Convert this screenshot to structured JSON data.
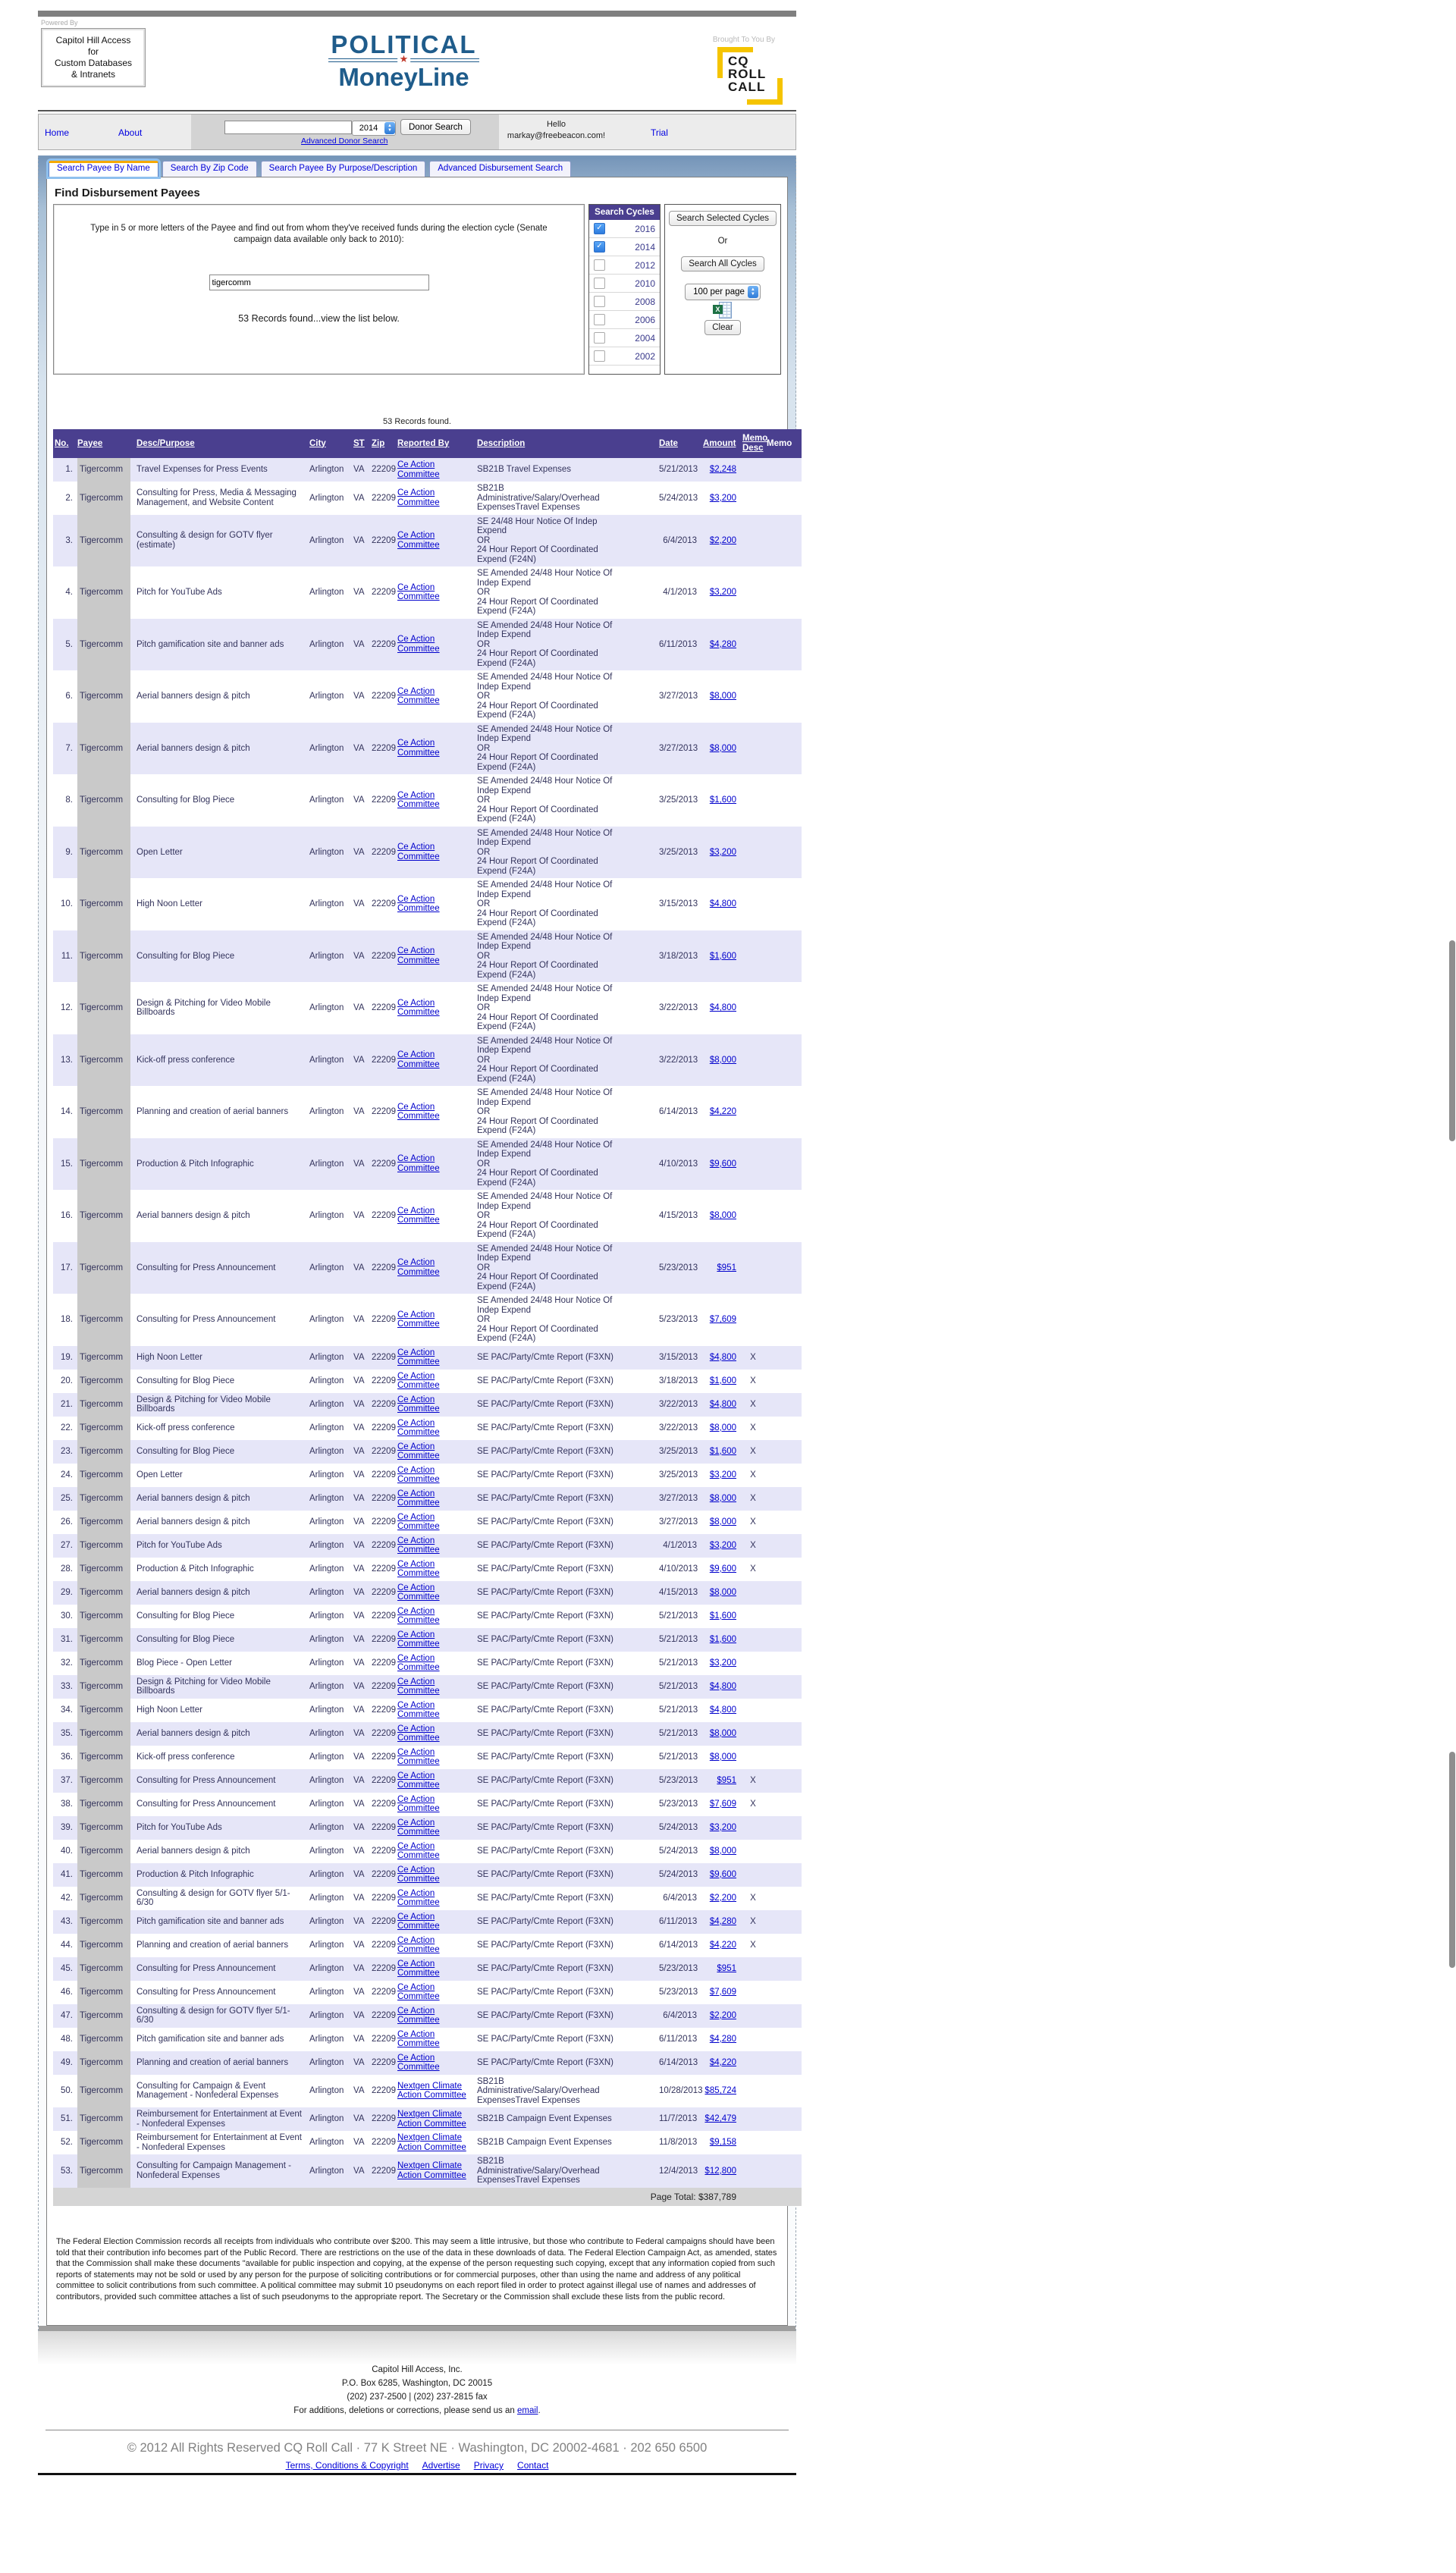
{
  "header": {
    "powered_by": "Powered By",
    "access_box": "Capitol Hill Access\nfor\nCustom Databases\n& Intranets",
    "logo_line1": "POLITICAL",
    "logo_star": "★",
    "logo_line2": "MoneyLine",
    "brought_by": "Brought To You By",
    "cq_logo": "CQ\nROLL\nCALL",
    "brand_blue": "#1F5C8B",
    "cq_yellow": "#F5C400"
  },
  "nav": {
    "home": "Home",
    "about": "About",
    "search_value": "",
    "year_selected": "2014",
    "donor_search": "Donor Search",
    "advanced_donor_search": "Advanced Donor Search",
    "hello": "Hello",
    "user": "markay@freebeacon.com!",
    "trial": "Trial"
  },
  "tabs": [
    {
      "label": "Search Payee By Name",
      "active": true
    },
    {
      "label": "Search By Zip Code",
      "active": false
    },
    {
      "label": "Search Payee By Purpose/Description",
      "active": false
    },
    {
      "label": "Advanced Disbursement Search",
      "active": false
    }
  ],
  "search": {
    "title": "Find Disbursement Payees",
    "instructions": "Type in 5 or more letters of the Payee and find out from whom they've received funds during the election cycle (Senate campaign data available only back to 2010):",
    "query": "tigercomm",
    "result_note": "53 Records found...view the list below."
  },
  "cycles": {
    "header": "Search Cycles",
    "items": [
      {
        "year": "2016",
        "checked": true
      },
      {
        "year": "2014",
        "checked": true
      },
      {
        "year": "2012",
        "checked": false
      },
      {
        "year": "2010",
        "checked": false
      },
      {
        "year": "2008",
        "checked": false
      },
      {
        "year": "2006",
        "checked": false
      },
      {
        "year": "2004",
        "checked": false
      },
      {
        "year": "2002",
        "checked": false
      }
    ]
  },
  "actions": {
    "search_selected": "Search Selected Cycles",
    "or": "Or",
    "search_all": "Search All Cycles",
    "per_page": "100 per page",
    "excel_icon": "excel-export-icon",
    "clear": "Clear"
  },
  "results": {
    "count_note": "53 Records found.",
    "columns": [
      "No.",
      "Payee",
      "Desc/Purpose",
      "City",
      "ST",
      "Zip",
      "Reported By",
      "Description",
      "Date",
      "Amount",
      "Memo Desc",
      "Memo"
    ],
    "header_purple": "#4A3F8F",
    "row_alt_color": "#E6E6F8",
    "payee_highlight_color": "#C9C9C9",
    "payee": "Tigercomm",
    "city": "Arlington",
    "st": "VA",
    "zip": "22209",
    "reported_by_options": {
      "ce": "Ce Action Committee",
      "ng": "Nextgen Climate Action Committee"
    },
    "descriptions": {
      "d1": "SB21B Travel Expenses",
      "d2": "SB21B\nAdministrative/Salary/Overhead\nExpensesTravel Expenses",
      "d3": "SE 24/48 Hour Notice Of Indep\nExpend\nOR\n24 Hour Report Of Coordinated\nExpend (F24N)",
      "d4": "SE Amended 24/48 Hour Notice Of\nIndep Expend\nOR\n24 Hour Report Of Coordinated\nExpend (F24A)",
      "d5": "SE PAC/Party/Cmte Report (F3XN)",
      "d6": "SB21B Campaign Event Expenses"
    },
    "rows": [
      {
        "no": "1.",
        "purpose": "Travel Expenses for Press Events",
        "reported_by": "ce",
        "desc": "d1",
        "date": "5/21/2013",
        "amount": "$2,248",
        "memo_desc": ""
      },
      {
        "no": "2.",
        "purpose": "Consulting for Press, Media & Messaging Management, and Website Content",
        "reported_by": "ce",
        "desc": "d2",
        "date": "5/24/2013",
        "amount": "$3,200",
        "memo_desc": ""
      },
      {
        "no": "3.",
        "purpose": "Consulting & design for GOTV flyer (estimate)",
        "reported_by": "ce",
        "desc": "d3",
        "date": "6/4/2013",
        "amount": "$2,200",
        "memo_desc": ""
      },
      {
        "no": "4.",
        "purpose": "Pitch for YouTube Ads",
        "reported_by": "ce",
        "desc": "d4",
        "date": "4/1/2013",
        "amount": "$3,200",
        "memo_desc": ""
      },
      {
        "no": "5.",
        "purpose": "Pitch gamification site and banner ads",
        "reported_by": "ce",
        "desc": "d4",
        "date": "6/11/2013",
        "amount": "$4,280",
        "memo_desc": ""
      },
      {
        "no": "6.",
        "purpose": "Aerial banners design & pitch",
        "reported_by": "ce",
        "desc": "d4",
        "date": "3/27/2013",
        "amount": "$8,000",
        "memo_desc": ""
      },
      {
        "no": "7.",
        "purpose": "Aerial banners design & pitch",
        "reported_by": "ce",
        "desc": "d4",
        "date": "3/27/2013",
        "amount": "$8,000",
        "memo_desc": ""
      },
      {
        "no": "8.",
        "purpose": "Consulting for Blog Piece",
        "reported_by": "ce",
        "desc": "d4",
        "date": "3/25/2013",
        "amount": "$1,600",
        "memo_desc": ""
      },
      {
        "no": "9.",
        "purpose": "Open Letter",
        "reported_by": "ce",
        "desc": "d4",
        "date": "3/25/2013",
        "amount": "$3,200",
        "memo_desc": ""
      },
      {
        "no": "10.",
        "purpose": "High Noon Letter",
        "reported_by": "ce",
        "desc": "d4",
        "date": "3/15/2013",
        "amount": "$4,800",
        "memo_desc": ""
      },
      {
        "no": "11.",
        "purpose": "Consulting for Blog Piece",
        "reported_by": "ce",
        "desc": "d4",
        "date": "3/18/2013",
        "amount": "$1,600",
        "memo_desc": ""
      },
      {
        "no": "12.",
        "purpose": "Design & Pitching for Video Mobile Billboards",
        "reported_by": "ce",
        "desc": "d4",
        "date": "3/22/2013",
        "amount": "$4,800",
        "memo_desc": ""
      },
      {
        "no": "13.",
        "purpose": "Kick-off press conference",
        "reported_by": "ce",
        "desc": "d4",
        "date": "3/22/2013",
        "amount": "$8,000",
        "memo_desc": ""
      },
      {
        "no": "14.",
        "purpose": "Planning and creation of aerial banners",
        "reported_by": "ce",
        "desc": "d4",
        "date": "6/14/2013",
        "amount": "$4,220",
        "memo_desc": ""
      },
      {
        "no": "15.",
        "purpose": "Production & Pitch Infographic",
        "reported_by": "ce",
        "desc": "d4",
        "date": "4/10/2013",
        "amount": "$9,600",
        "memo_desc": ""
      },
      {
        "no": "16.",
        "purpose": "Aerial banners design & pitch",
        "reported_by": "ce",
        "desc": "d4",
        "date": "4/15/2013",
        "amount": "$8,000",
        "memo_desc": ""
      },
      {
        "no": "17.",
        "purpose": "Consulting for Press Announcement",
        "reported_by": "ce",
        "desc": "d4",
        "date": "5/23/2013",
        "amount": "$951",
        "memo_desc": ""
      },
      {
        "no": "18.",
        "purpose": "Consulting for Press Announcement",
        "reported_by": "ce",
        "desc": "d4",
        "date": "5/23/2013",
        "amount": "$7,609",
        "memo_desc": ""
      },
      {
        "no": "19.",
        "purpose": "High Noon Letter",
        "reported_by": "ce",
        "desc": "d5",
        "date": "3/15/2013",
        "amount": "$4,800",
        "memo_desc": "X"
      },
      {
        "no": "20.",
        "purpose": "Consulting for Blog Piece",
        "reported_by": "ce",
        "desc": "d5",
        "date": "3/18/2013",
        "amount": "$1,600",
        "memo_desc": "X"
      },
      {
        "no": "21.",
        "purpose": "Design & Pitching for Video Mobile Billboards",
        "reported_by": "ce",
        "desc": "d5",
        "date": "3/22/2013",
        "amount": "$4,800",
        "memo_desc": "X"
      },
      {
        "no": "22.",
        "purpose": "Kick-off press conference",
        "reported_by": "ce",
        "desc": "d5",
        "date": "3/22/2013",
        "amount": "$8,000",
        "memo_desc": "X"
      },
      {
        "no": "23.",
        "purpose": "Consulting for Blog Piece",
        "reported_by": "ce",
        "desc": "d5",
        "date": "3/25/2013",
        "amount": "$1,600",
        "memo_desc": "X"
      },
      {
        "no": "24.",
        "purpose": "Open Letter",
        "reported_by": "ce",
        "desc": "d5",
        "date": "3/25/2013",
        "amount": "$3,200",
        "memo_desc": "X"
      },
      {
        "no": "25.",
        "purpose": "Aerial banners design & pitch",
        "reported_by": "ce",
        "desc": "d5",
        "date": "3/27/2013",
        "amount": "$8,000",
        "memo_desc": "X"
      },
      {
        "no": "26.",
        "purpose": "Aerial banners design & pitch",
        "reported_by": "ce",
        "desc": "d5",
        "date": "3/27/2013",
        "amount": "$8,000",
        "memo_desc": "X"
      },
      {
        "no": "27.",
        "purpose": "Pitch for YouTube Ads",
        "reported_by": "ce",
        "desc": "d5",
        "date": "4/1/2013",
        "amount": "$3,200",
        "memo_desc": "X"
      },
      {
        "no": "28.",
        "purpose": "Production & Pitch Infographic",
        "reported_by": "ce",
        "desc": "d5",
        "date": "4/10/2013",
        "amount": "$9,600",
        "memo_desc": "X"
      },
      {
        "no": "29.",
        "purpose": "Aerial banners design & pitch",
        "reported_by": "ce",
        "desc": "d5",
        "date": "4/15/2013",
        "amount": "$8,000",
        "memo_desc": ""
      },
      {
        "no": "30.",
        "purpose": "Consulting for Blog Piece",
        "reported_by": "ce",
        "desc": "d5",
        "date": "5/21/2013",
        "amount": "$1,600",
        "memo_desc": ""
      },
      {
        "no": "31.",
        "purpose": "Consulting for Blog Piece",
        "reported_by": "ce",
        "desc": "d5",
        "date": "5/21/2013",
        "amount": "$1,600",
        "memo_desc": ""
      },
      {
        "no": "32.",
        "purpose": "Blog Piece - Open Letter",
        "reported_by": "ce",
        "desc": "d5",
        "date": "5/21/2013",
        "amount": "$3,200",
        "memo_desc": ""
      },
      {
        "no": "33.",
        "purpose": "Design & Pitching for Video Mobile Billboards",
        "reported_by": "ce",
        "desc": "d5",
        "date": "5/21/2013",
        "amount": "$4,800",
        "memo_desc": ""
      },
      {
        "no": "34.",
        "purpose": "High Noon Letter",
        "reported_by": "ce",
        "desc": "d5",
        "date": "5/21/2013",
        "amount": "$4,800",
        "memo_desc": ""
      },
      {
        "no": "35.",
        "purpose": "Aerial banners design & pitch",
        "reported_by": "ce",
        "desc": "d5",
        "date": "5/21/2013",
        "amount": "$8,000",
        "memo_desc": ""
      },
      {
        "no": "36.",
        "purpose": "Kick-off press conference",
        "reported_by": "ce",
        "desc": "d5",
        "date": "5/21/2013",
        "amount": "$8,000",
        "memo_desc": ""
      },
      {
        "no": "37.",
        "purpose": "Consulting for Press Announcement",
        "reported_by": "ce",
        "desc": "d5",
        "date": "5/23/2013",
        "amount": "$951",
        "memo_desc": "X"
      },
      {
        "no": "38.",
        "purpose": "Consulting for Press Announcement",
        "reported_by": "ce",
        "desc": "d5",
        "date": "5/23/2013",
        "amount": "$7,609",
        "memo_desc": "X"
      },
      {
        "no": "39.",
        "purpose": "Pitch for YouTube Ads",
        "reported_by": "ce",
        "desc": "d5",
        "date": "5/24/2013",
        "amount": "$3,200",
        "memo_desc": ""
      },
      {
        "no": "40.",
        "purpose": "Aerial banners design & pitch",
        "reported_by": "ce",
        "desc": "d5",
        "date": "5/24/2013",
        "amount": "$8,000",
        "memo_desc": ""
      },
      {
        "no": "41.",
        "purpose": "Production & Pitch Infographic",
        "reported_by": "ce",
        "desc": "d5",
        "date": "5/24/2013",
        "amount": "$9,600",
        "memo_desc": ""
      },
      {
        "no": "42.",
        "purpose": "Consulting & design for GOTV flyer 5/1-6/30",
        "reported_by": "ce",
        "desc": "d5",
        "date": "6/4/2013",
        "amount": "$2,200",
        "memo_desc": "X"
      },
      {
        "no": "43.",
        "purpose": "Pitch gamification site and banner ads",
        "reported_by": "ce",
        "desc": "d5",
        "date": "6/11/2013",
        "amount": "$4,280",
        "memo_desc": "X"
      },
      {
        "no": "44.",
        "purpose": "Planning and creation of aerial banners",
        "reported_by": "ce",
        "desc": "d5",
        "date": "6/14/2013",
        "amount": "$4,220",
        "memo_desc": "X"
      },
      {
        "no": "45.",
        "purpose": "Consulting for Press Announcement",
        "reported_by": "ce",
        "desc": "d5",
        "date": "5/23/2013",
        "amount": "$951",
        "memo_desc": ""
      },
      {
        "no": "46.",
        "purpose": "Consulting for Press Announcement",
        "reported_by": "ce",
        "desc": "d5",
        "date": "5/23/2013",
        "amount": "$7,609",
        "memo_desc": ""
      },
      {
        "no": "47.",
        "purpose": "Consulting & design for GOTV flyer 5/1-6/30",
        "reported_by": "ce",
        "desc": "d5",
        "date": "6/4/2013",
        "amount": "$2,200",
        "memo_desc": ""
      },
      {
        "no": "48.",
        "purpose": "Pitch gamification site and banner ads",
        "reported_by": "ce",
        "desc": "d5",
        "date": "6/11/2013",
        "amount": "$4,280",
        "memo_desc": ""
      },
      {
        "no": "49.",
        "purpose": "Planning and creation of aerial banners",
        "reported_by": "ce",
        "desc": "d5",
        "date": "6/14/2013",
        "amount": "$4,220",
        "memo_desc": ""
      },
      {
        "no": "50.",
        "purpose": "Consulting for Campaign & Event Management - Nonfederal Expenses",
        "reported_by": "ng",
        "desc": "d2",
        "date": "10/28/2013",
        "amount": "$85,724",
        "memo_desc": ""
      },
      {
        "no": "51.",
        "purpose": "Reimbursement for Entertainment at Event - Nonfederal Expenses",
        "reported_by": "ng",
        "desc": "d6",
        "date": "11/7/2013",
        "amount": "$42,479",
        "memo_desc": ""
      },
      {
        "no": "52.",
        "purpose": "Reimbursement for Entertainment at Event - Nonfederal Expenses",
        "reported_by": "ng",
        "desc": "d6",
        "date": "11/8/2013",
        "amount": "$9,158",
        "memo_desc": ""
      },
      {
        "no": "53.",
        "purpose": "Consulting for Campaign Management - Nonfederal Expenses",
        "reported_by": "ng",
        "desc": "d2",
        "date": "12/4/2013",
        "amount": "$12,800",
        "memo_desc": ""
      }
    ],
    "page_total_label": "Page Total:",
    "page_total": "$387,789"
  },
  "disclaimer": "The Federal Election Commission records all receipts from individuals who contribute over $200. This may seem a little intrusive, but those who contribute to Federal campaigns should have been told that their contribution info becomes part of the Public Record. There are restrictions on the use of the data in these downloads of data. The Federal Election Campaign Act, as amended, states that the Commission shall make these documents \"available for public inspection and copying, at the expense of the person requesting such copying, except that any information copied from such reports of statements may not be sold or used by any person for the purpose of soliciting contributions or for commercial purposes, other than using the name and address of any political committee to solicit contributions from such committee. A political committee may submit 10 pseudonyms on each report filed in order to protect against illegal use of names and addresses of contributors, provided such committee attaches a list of such pseudonyms to the appropriate report. The Secretary or the Commission shall exclude these lists from the public record.",
  "footer": {
    "company": "Capitol Hill Access, Inc.",
    "address": "P.O. Box 6285, Washington, DC 20015",
    "phones": "(202) 237-2500 | (202) 237-2815 fax",
    "corrections_prefix": "For additions, deletions or corrections, please send us an ",
    "email_link": "email",
    "corrections_suffix": ".",
    "copyright": "© 2012 All Rights Reserved CQ Roll Call · 77 K Street NE · Washington, DC 20002-4681 · 202 650 6500",
    "links": [
      "Terms, Conditions & Copyright",
      "Advertise",
      "Privacy",
      "Contact"
    ]
  }
}
